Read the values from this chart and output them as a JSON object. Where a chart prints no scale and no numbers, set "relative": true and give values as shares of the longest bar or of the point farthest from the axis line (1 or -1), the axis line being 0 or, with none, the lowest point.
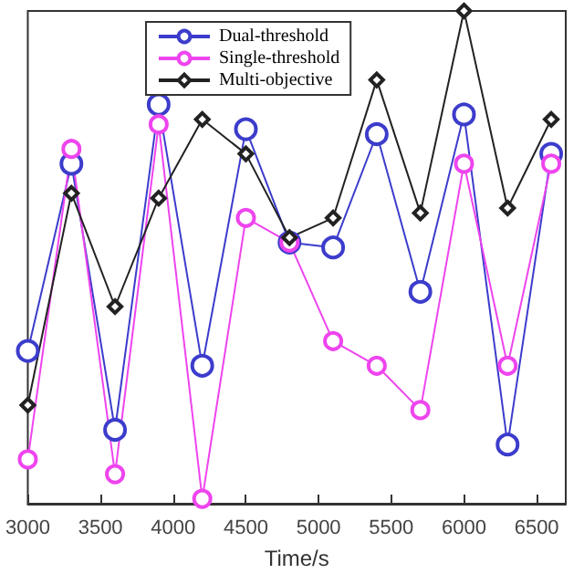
{
  "chart_data": {
    "type": "line",
    "relative": true,
    "xlabel": "Time/s",
    "x": [
      3000,
      3300,
      3600,
      3900,
      4200,
      4500,
      4800,
      5100,
      5400,
      5700,
      6000,
      6300,
      6600
    ],
    "xlim": [
      3000,
      6700
    ],
    "xticks": [
      3000,
      3500,
      4000,
      4500,
      5000,
      5500,
      6000,
      6500
    ],
    "legend": "top",
    "grid": false,
    "line_style": "solid",
    "series": [
      {
        "name": "Dual-threshold",
        "color": "#3c3ccc",
        "marker": "circle",
        "values": [
          0.31,
          0.69,
          0.15,
          0.81,
          0.28,
          0.76,
          0.53,
          0.52,
          0.75,
          0.43,
          0.79,
          0.12,
          0.71
        ]
      },
      {
        "name": "Single-threshold",
        "color": "#ee44ee",
        "marker": "circle",
        "values": [
          0.09,
          0.72,
          0.06,
          0.77,
          0.01,
          0.58,
          0.53,
          0.33,
          0.28,
          0.19,
          0.69,
          0.28,
          0.69
        ]
      },
      {
        "name": "Multi-objective",
        "color": "#222222",
        "marker": "diamond",
        "values": [
          0.2,
          0.63,
          0.4,
          0.62,
          0.78,
          0.71,
          0.54,
          0.58,
          0.86,
          0.59,
          1,
          0.6,
          0.78
        ]
      }
    ]
  }
}
